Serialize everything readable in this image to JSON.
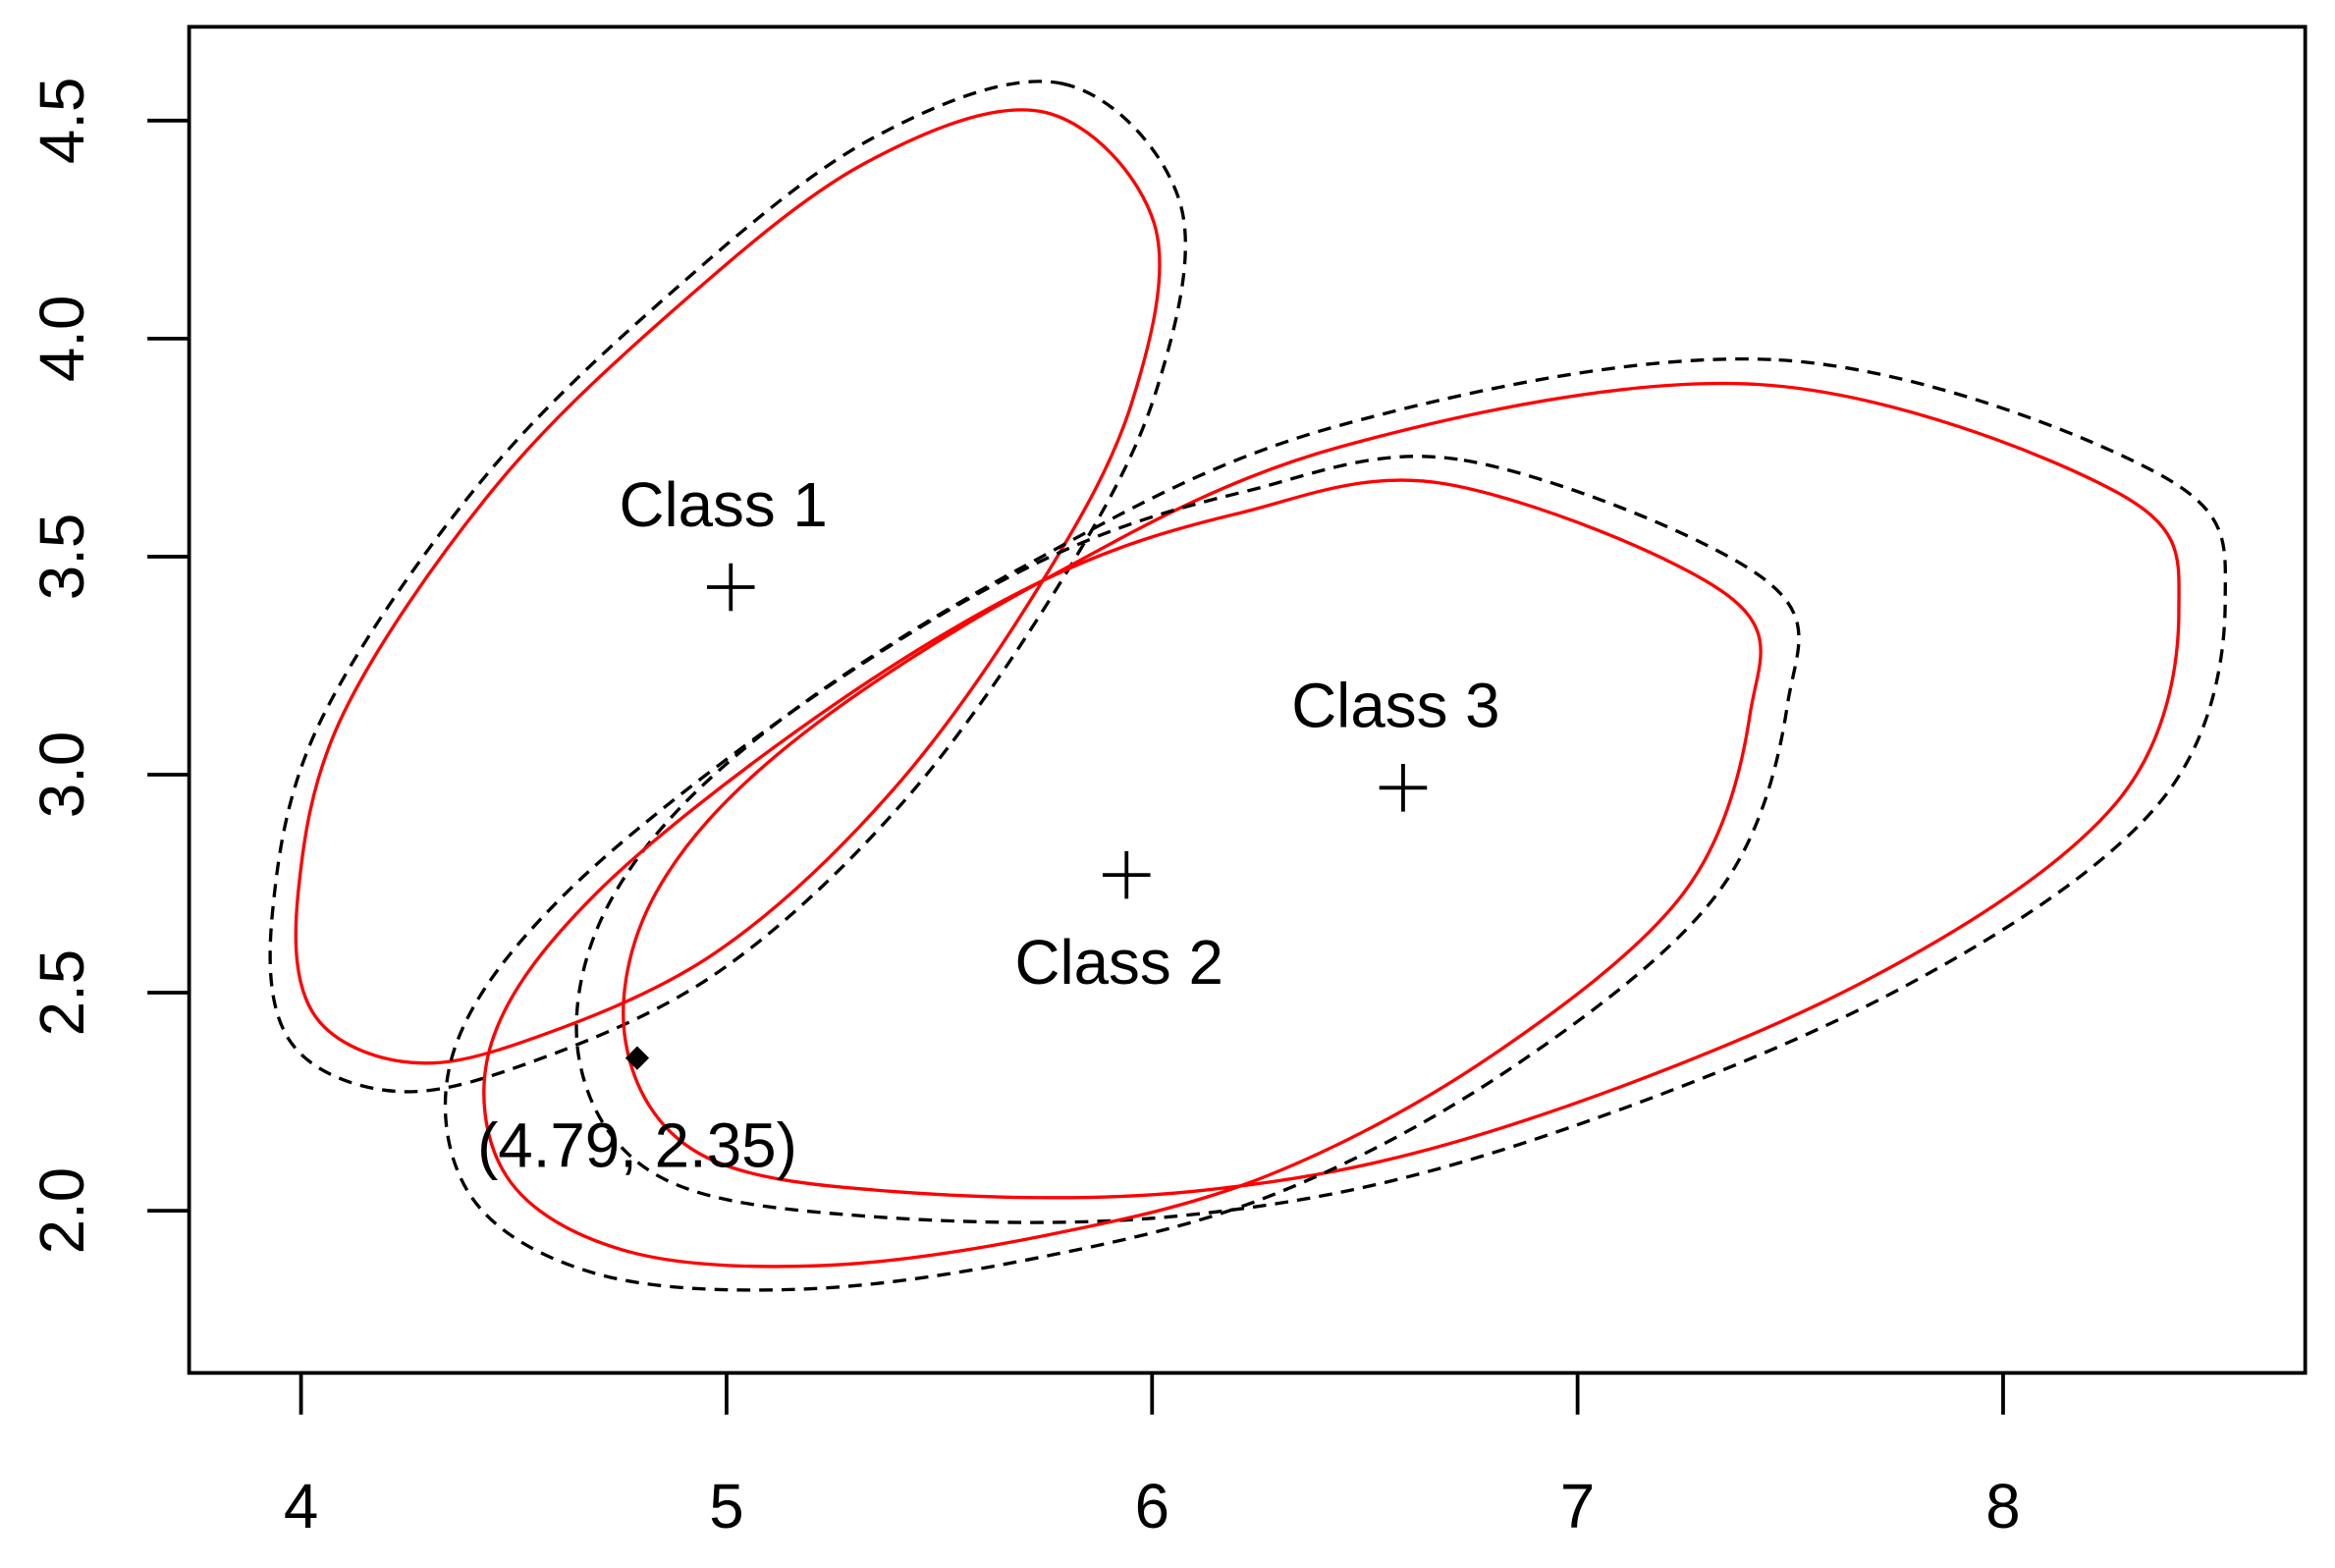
{
  "chart_data": {
    "type": "contour-scatter",
    "xlim": [
      3.737,
      8.71
    ],
    "ylim": [
      1.628,
      4.715
    ],
    "xticks": [
      4,
      5,
      6,
      7,
      8
    ],
    "yticks": [
      {
        "value": 2,
        "label": "2.0"
      },
      {
        "value": 2.5,
        "label": "2.5"
      },
      {
        "value": 3,
        "label": "3.0"
      },
      {
        "value": 3.5,
        "label": "3.5"
      },
      {
        "value": 4,
        "label": "4.0"
      },
      {
        "value": 4.5,
        "label": "4.5"
      }
    ],
    "series": [
      {
        "color": "#ff0000",
        "dashed": false,
        "x": [
          5.743,
          6.005,
          5.953,
          5.743,
          5.393,
          4.973,
          4.518,
          4.238,
          4.028,
          3.993,
          4.098,
          4.448,
          4.868,
          5.323
        ],
        "y": [
          4.52,
          4.264,
          3.855,
          3.445,
          2.967,
          2.591,
          2.386,
          2.342,
          2.454,
          2.727,
          3.137,
          3.65,
          4.059,
          4.401
        ]
      },
      {
        "color": "#000000",
        "dashed": true,
        "x": [
          5.788,
          6.065,
          6.01,
          5.788,
          5.417,
          4.971,
          4.489,
          4.192,
          3.97,
          3.933,
          4.044,
          4.415,
          4.86,
          5.342
        ],
        "y": [
          4.585,
          4.314,
          3.881,
          3.446,
          2.939,
          2.541,
          2.323,
          2.277,
          2.395,
          2.685,
          3.119,
          3.663,
          4.097,
          4.459
        ]
      },
      {
        "color": "#ff0000",
        "dashed": false,
        "x": [
          7.423,
          8.263,
          8.413,
          8.263,
          7.668,
          6.793,
          6.093,
          5.393,
          4.938,
          4.763,
          4.833,
          5.148,
          5.743,
          6.443
        ],
        "y": [
          3.895,
          3.65,
          3.376,
          2.932,
          2.523,
          2.181,
          2.044,
          2.044,
          2.13,
          2.386,
          2.727,
          3.069,
          3.445,
          3.752
        ]
      },
      {
        "color": "#000000",
        "dashed": true,
        "x": [
          7.473,
          8.363,
          8.522,
          8.363,
          7.733,
          6.805,
          6.063,
          5.321,
          4.839,
          4.653,
          4.728,
          5.061,
          5.692,
          6.434
        ],
        "y": [
          3.951,
          3.691,
          3.4,
          2.93,
          2.496,
          2.134,
          1.988,
          1.988,
          2.08,
          2.351,
          2.712,
          3.075,
          3.474,
          3.799
        ]
      },
      {
        "color": "#ff0000",
        "dashed": false,
        "x": [
          6.688,
          7.353,
          7.405,
          7.248,
          6.793,
          6.268,
          5.743,
          5.218,
          4.763,
          4.483,
          4.448,
          4.693,
          5.218,
          5.743,
          6.198
        ],
        "y": [
          3.667,
          3.411,
          3.137,
          2.727,
          2.352,
          2.079,
          1.942,
          1.874,
          1.908,
          2.079,
          2.386,
          2.727,
          3.137,
          3.445,
          3.598
        ]
      },
      {
        "color": "#000000",
        "dashed": true,
        "x": [
          6.733,
          7.438,
          7.493,
          7.326,
          6.844,
          6.288,
          5.731,
          5.175,
          4.692,
          4.396,
          4.358,
          4.618,
          5.175,
          5.731,
          6.213
        ],
        "y": [
          3.721,
          3.449,
          3.159,
          2.724,
          2.327,
          2.038,
          1.892,
          1.82,
          1.856,
          2.038,
          2.363,
          2.724,
          3.159,
          3.486,
          3.648
        ]
      }
    ],
    "centroids": {
      "labels": [
        "Class 1",
        "Class 2",
        "Class 3"
      ],
      "label_position": [
        "above",
        "below",
        "above"
      ],
      "x": [
        5.01,
        5.94,
        6.59
      ],
      "y": [
        3.43,
        2.77,
        2.97
      ]
    },
    "point": {
      "x": 4.79,
      "y": 2.35,
      "label": "(4.79, 2.35)"
    }
  }
}
